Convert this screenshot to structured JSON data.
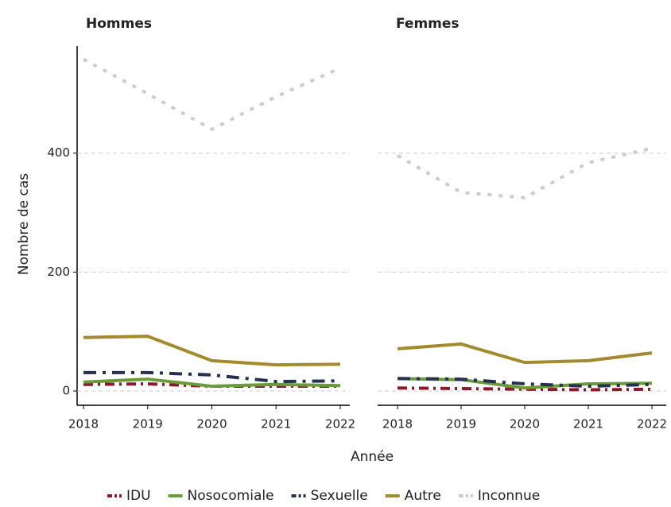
{
  "chart_data": {
    "type": "line",
    "xlabel": "Année",
    "ylabel": "Nombre de cas",
    "x": [
      2018,
      2019,
      2020,
      2021,
      2022
    ],
    "xticks": [
      2018,
      2019,
      2020,
      2021,
      2022
    ],
    "ylim": [
      -24,
      580
    ],
    "yticks": [
      0,
      200,
      400
    ],
    "grid": true,
    "legend": "bottom",
    "panels": [
      {
        "title": "Hommes",
        "series": [
          {
            "name": "IDU",
            "color": "#8b1a2e",
            "dash": "dashdot",
            "values": [
              11,
              12,
              8,
              8,
              8
            ]
          },
          {
            "name": "Nosocomiale",
            "color": "#6a9a3a",
            "dash": "solid",
            "values": [
              15,
              20,
              8,
              11,
              9
            ]
          },
          {
            "name": "Sexuelle",
            "color": "#27304f",
            "dash": "longdashdot",
            "values": [
              31,
              31,
              27,
              16,
              17
            ]
          },
          {
            "name": "Autre",
            "color": "#a38a2e",
            "dash": "solid",
            "values": [
              90,
              92,
              51,
              44,
              45
            ]
          },
          {
            "name": "Inconnue",
            "color": "#cccccc",
            "dash": "dotted",
            "values": [
              558,
              500,
              440,
              495,
              543
            ]
          }
        ]
      },
      {
        "title": "Femmes",
        "series": [
          {
            "name": "IDU",
            "color": "#8b1a2e",
            "dash": "dashdot",
            "values": [
              5,
              4,
              3,
              2,
              3
            ]
          },
          {
            "name": "Nosocomiale",
            "color": "#6a9a3a",
            "dash": "solid",
            "values": [
              21,
              19,
              5,
              12,
              13
            ]
          },
          {
            "name": "Sexuelle",
            "color": "#27304f",
            "dash": "longdashdot",
            "values": [
              21,
              20,
              12,
              8,
              11
            ]
          },
          {
            "name": "Autre",
            "color": "#a38a2e",
            "dash": "solid",
            "values": [
              71,
              79,
              48,
              51,
              64
            ]
          },
          {
            "name": "Inconnue",
            "color": "#cccccc",
            "dash": "dotted",
            "values": [
              396,
              334,
              325,
              384,
              408
            ]
          }
        ]
      }
    ]
  }
}
